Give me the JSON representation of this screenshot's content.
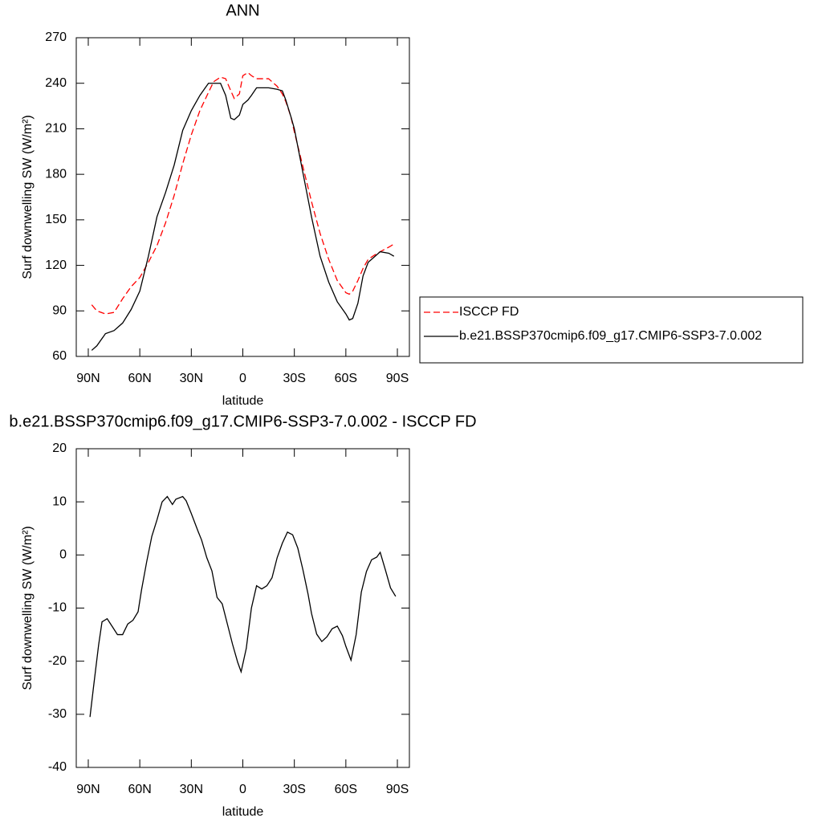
{
  "chart_data": [
    {
      "type": "line",
      "title": "ANN",
      "xlabel": "latitude",
      "ylabel": "Surf downwelling SW (W/m²)",
      "x": [
        88,
        85,
        80,
        75,
        70,
        65,
        60,
        55,
        50,
        45,
        40,
        35,
        30,
        25,
        20,
        17,
        13,
        10,
        7,
        5,
        2,
        0,
        -3,
        -5,
        -8,
        -10,
        -15,
        -20,
        -23,
        -25,
        -28,
        -30,
        -35,
        -40,
        -45,
        -50,
        -55,
        -60,
        -62,
        -64,
        -67,
        -70,
        -73,
        -77,
        -80,
        -85,
        -88
      ],
      "series": [
        {
          "name": "ISCCP FD",
          "color": "#ff0000",
          "dash": true,
          "values": [
            94,
            90,
            88,
            89,
            98,
            106,
            112,
            122,
            133,
            148,
            166,
            187,
            206,
            222,
            234,
            241,
            244,
            243,
            235,
            230,
            233,
            245,
            247,
            245,
            243,
            243,
            243,
            238,
            233,
            228,
            218,
            208,
            185,
            162,
            141,
            124,
            110,
            102,
            101,
            103,
            110,
            118,
            124,
            127,
            129,
            132,
            134
          ]
        },
        {
          "name": "b.e21.BSSP370cmip6.f09_g17.CMIP6-SSP3-7.0.002",
          "color": "#000000",
          "dash": false,
          "values": [
            64,
            67,
            75,
            77,
            82,
            91,
            103,
            126,
            152,
            168,
            186,
            209,
            222,
            232,
            240,
            240,
            240,
            232,
            217,
            216,
            219,
            226,
            229,
            232,
            237,
            237,
            237,
            236,
            235,
            229,
            218,
            210,
            181,
            152,
            126,
            109,
            96,
            88,
            84,
            85,
            95,
            113,
            122,
            126,
            129,
            128,
            126
          ]
        }
      ],
      "xlim": [
        97,
        -97
      ],
      "xticks": [
        {
          "value": 90,
          "label": "90N"
        },
        {
          "value": 60,
          "label": "60N"
        },
        {
          "value": 30,
          "label": "30N"
        },
        0,
        {
          "value": -30,
          "label": "30S"
        },
        {
          "value": -60,
          "label": "60S"
        },
        {
          "value": -90,
          "label": "90S"
        }
      ],
      "ylim": [
        60,
        270
      ],
      "yticks": [
        60,
        90,
        120,
        150,
        180,
        210,
        240,
        270
      ],
      "legend": "right"
    },
    {
      "type": "line",
      "title": "b.e21.BSSP370cmip6.f09_g17.CMIP6-SSP3-7.0.002 - ISCCP FD",
      "xlabel": "latitude",
      "ylabel": "Surf downwelling SW (W/m²)",
      "x": [
        89,
        87,
        84,
        82,
        79,
        76,
        73,
        70,
        67,
        64,
        61,
        59,
        56,
        53,
        50,
        47,
        44,
        41,
        39,
        35,
        33,
        30,
        26,
        24,
        21,
        18,
        15,
        12,
        9,
        6,
        3,
        1,
        -2,
        -5,
        -8,
        -11,
        -14,
        -17,
        -20,
        -23,
        -26,
        -29,
        -32,
        -35,
        -38,
        -40,
        -43,
        -46,
        -49,
        -52,
        -55,
        -58,
        -60,
        -63,
        -66,
        -69,
        -72,
        -75,
        -78,
        -80,
        -83,
        -86,
        -89
      ],
      "values": [
        -30.5,
        -25,
        -17,
        -12.6,
        -12,
        -13.5,
        -15,
        -15,
        -13,
        -12.3,
        -10.7,
        -6.6,
        -1.3,
        3.5,
        6.6,
        10,
        11,
        9.5,
        10.5,
        11,
        10.2,
        7.8,
        4.4,
        2.8,
        -0.5,
        -3,
        -8,
        -9.2,
        -13,
        -16.8,
        -20.2,
        -22,
        -17.6,
        -10,
        -5.8,
        -6.4,
        -5.8,
        -4.3,
        -0.5,
        2.2,
        4.3,
        3.8,
        1.3,
        -2.8,
        -7.4,
        -11,
        -14.9,
        -16.3,
        -15.4,
        -13.9,
        -13.4,
        -15.2,
        -17.2,
        -19.8,
        -15,
        -7,
        -3.1,
        -0.9,
        -0.4,
        0.5,
        -2.8,
        -6.2,
        -7.8
      ],
      "color": "#000000",
      "xlim": [
        97,
        -97
      ],
      "xticks": [
        {
          "value": 90,
          "label": "90N"
        },
        {
          "value": 60,
          "label": "60N"
        },
        {
          "value": 30,
          "label": "30N"
        },
        0,
        {
          "value": -30,
          "label": "30S"
        },
        {
          "value": -60,
          "label": "60S"
        },
        {
          "value": -90,
          "label": "90S"
        }
      ],
      "ylim": [
        -40,
        20
      ],
      "yticks": [
        -40,
        -30,
        -20,
        -10,
        0,
        10,
        20
      ]
    }
  ]
}
